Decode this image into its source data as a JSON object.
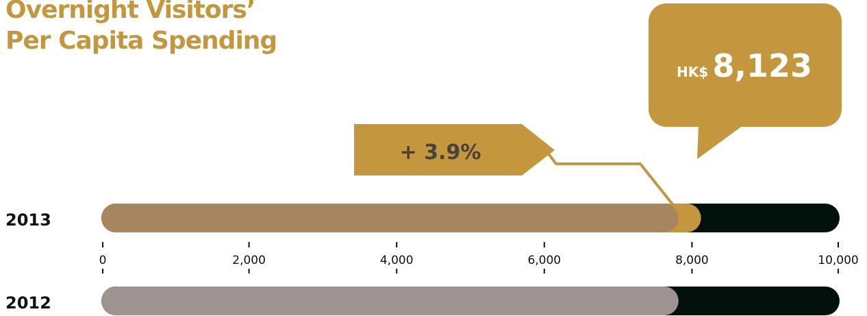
{
  "title_lines": [
    "Overnight Visitors’",
    "Per Capita Spending"
  ],
  "colors": {
    "gold": "#c4973f",
    "bar_2013": "#a6865f",
    "bar_2012": "#9d9491",
    "track": "#03110d",
    "text_dark": "#111111",
    "change_text": "#4a4238"
  },
  "chart_data": {
    "type": "bar",
    "orientation": "horizontal",
    "categories": [
      "2013",
      "2012"
    ],
    "series": [
      {
        "values": [
          8123,
          7818
        ]
      }
    ],
    "xlim": [
      0,
      10000
    ],
    "xticks": [
      0,
      2000,
      4000,
      6000,
      8000,
      10000
    ],
    "xtick_labels": [
      "0",
      "2,000",
      "4,000",
      "6,000",
      "8,000",
      "10,000"
    ],
    "grid": false,
    "annotations": {
      "callout_currency": "HK$",
      "callout_value": "8,123",
      "change_label": "+ 3.9%"
    }
  }
}
